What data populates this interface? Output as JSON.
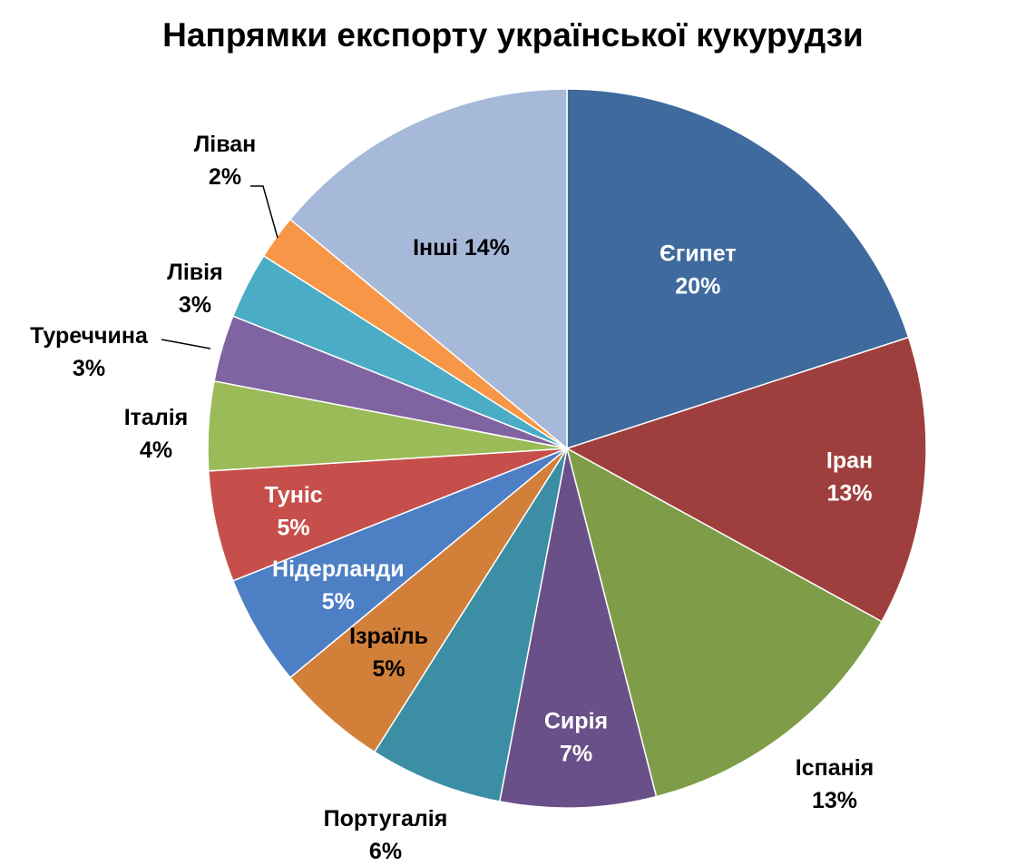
{
  "chart_data": {
    "type": "pie",
    "title": "Напрямки експорту української кукурудзи",
    "slices": [
      {
        "label": "Єгипет",
        "pct_text": "20%",
        "value": 20,
        "color": "#3F6A9D",
        "label_color": "#FFFFFF"
      },
      {
        "label": "Іран",
        "pct_text": "13%",
        "value": 13,
        "color": "#9E3F3D",
        "label_color": "#FFFFFF"
      },
      {
        "label": "Іспанія",
        "pct_text": "13%",
        "value": 13,
        "color": "#7F9D48",
        "label_color": "#000000"
      },
      {
        "label": "Сирія",
        "pct_text": "7%",
        "value": 7,
        "color": "#6A5088",
        "label_color": "#FFFFFF"
      },
      {
        "label": "Португалія",
        "pct_text": "6%",
        "value": 6,
        "color": "#3C8EA4",
        "label_color": "#000000"
      },
      {
        "label": "Ізраїль",
        "pct_text": "5%",
        "value": 5,
        "color": "#D27F3A",
        "label_color": "#000000"
      },
      {
        "label": "Нідерланди",
        "pct_text": "5%",
        "value": 5,
        "color": "#4D7FC5",
        "label_color": "#FFFFFF"
      },
      {
        "label": "Туніс",
        "pct_text": "5%",
        "value": 5,
        "color": "#C64F4B",
        "label_color": "#FFFFFF"
      },
      {
        "label": "Італія",
        "pct_text": "4%",
        "value": 4,
        "color": "#9BBB59",
        "label_color": "#000000"
      },
      {
        "label": "Туреччина",
        "pct_text": "3%",
        "value": 3,
        "color": "#8064A2",
        "label_color": "#000000"
      },
      {
        "label": "Лівія",
        "pct_text": "3%",
        "value": 3,
        "color": "#4BACC6",
        "label_color": "#000000"
      },
      {
        "label": "Ліван",
        "pct_text": "2%",
        "value": 2,
        "color": "#F79646",
        "label_color": "#000000"
      },
      {
        "label": "Інші",
        "pct_text": "14%",
        "value": 14,
        "color": "#A7B9D9",
        "label_color": "#000000"
      }
    ],
    "start_angle_deg": 0,
    "direction": "clockwise",
    "legend": "none"
  }
}
